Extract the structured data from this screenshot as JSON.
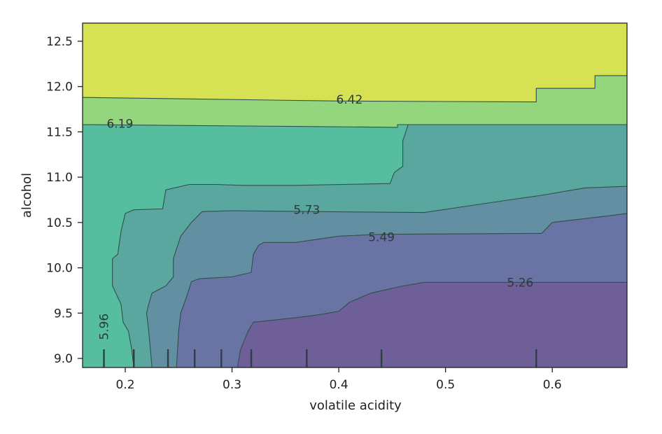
{
  "chart_data": {
    "type": "contour",
    "xlabel": "volatile acidity",
    "ylabel": "alcohol",
    "xlim": [
      0.16,
      0.67
    ],
    "ylim": [
      8.9,
      12.7
    ],
    "xticks": [
      0.2,
      0.3,
      0.4,
      0.5,
      0.6
    ],
    "yticks": [
      9.0,
      9.5,
      10.0,
      10.5,
      11.0,
      11.5,
      12.0,
      12.5
    ],
    "grid": false,
    "levels": [
      5.26,
      5.49,
      5.73,
      5.96,
      6.19,
      6.42
    ],
    "contour_labels": [
      {
        "text": "6.42",
        "x": 0.41,
        "y": 11.86
      },
      {
        "text": "6.19",
        "x": 0.195,
        "y": 11.59
      },
      {
        "text": "5.73",
        "x": 0.37,
        "y": 10.64
      },
      {
        "text": "5.49",
        "x": 0.44,
        "y": 10.34
      },
      {
        "text": "5.96",
        "x": 0.18,
        "y": 9.35
      },
      {
        "text": "5.26",
        "x": 0.57,
        "y": 9.84
      }
    ],
    "rug_x": [
      0.18,
      0.208,
      0.24,
      0.265,
      0.29,
      0.318,
      0.37,
      0.44,
      0.585
    ],
    "bands": [
      {
        "name": "<5.26",
        "color": "#6f5f98"
      },
      {
        "name": "5.26-5.49",
        "color": "#6a74a4"
      },
      {
        "name": "5.49-5.73",
        "color": "#638fa2"
      },
      {
        "name": "5.73-5.96",
        "color": "#5aa7a0"
      },
      {
        "name": "5.96-6.19",
        "color": "#56be9e"
      },
      {
        "name": "6.19-6.42",
        "color": "#93d67e"
      },
      {
        "name": ">6.42",
        "color": "#d6e153"
      }
    ]
  }
}
